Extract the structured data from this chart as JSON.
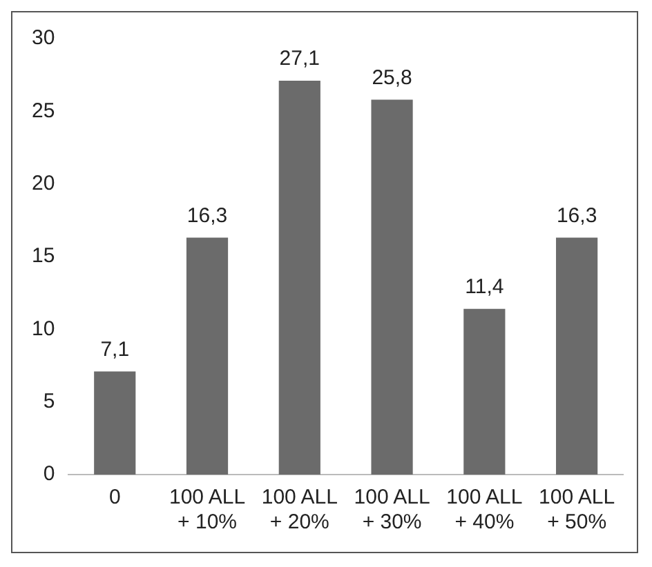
{
  "chart_data": {
    "type": "bar",
    "categories": [
      "0",
      "100 ALL + 10%",
      "100 ALL + 20%",
      "100 ALL + 30%",
      "100 ALL + 40%",
      "100 ALL + 50%"
    ],
    "values": [
      7.1,
      16.3,
      27.1,
      25.8,
      11.4,
      16.3
    ],
    "value_labels": [
      "7,1",
      "16,3",
      "27,1",
      "25,8",
      "11,4",
      "16,3"
    ],
    "color": "#6b6b6b",
    "ylim": [
      0,
      30
    ],
    "yticks": [
      0,
      5,
      10,
      15,
      20,
      25,
      30
    ],
    "grid": false,
    "legend": false
  }
}
